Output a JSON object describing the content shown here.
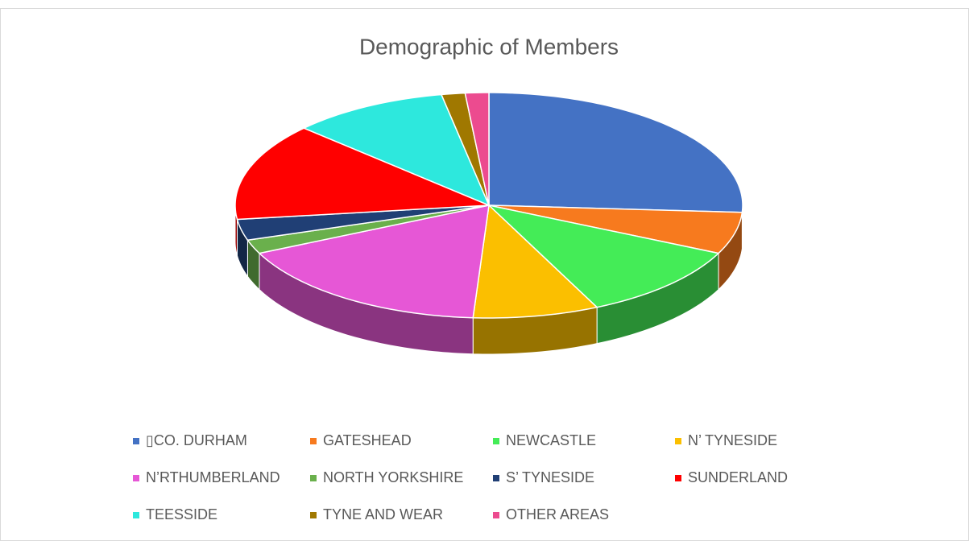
{
  "chart_data": {
    "type": "pie",
    "title": "Demographic of Members",
    "categories": [
      "▯CO. DURHAM",
      "GATESHEAD",
      "NEWCASTLE",
      "N’ TYNESIDE",
      "N’RTHUMBERLAND",
      "NORTH YORKSHIRE",
      "S’ TYNESIDE",
      "SUNDERLAND",
      "TEESSIDE",
      "TYNE AND WEAR",
      "OTHER AREAS"
    ],
    "values": [
      26,
      6,
      11,
      8,
      17,
      2,
      3,
      14,
      10,
      1.5,
      1.5
    ],
    "colors": [
      "#4472c4",
      "#f77a1e",
      "#44ec57",
      "#fbbf00",
      "#e657d6",
      "#6ab04c",
      "#203f75",
      "#ff0000",
      "#2de8dd",
      "#a07800",
      "#ec4b8f"
    ],
    "legend": "bottom"
  }
}
